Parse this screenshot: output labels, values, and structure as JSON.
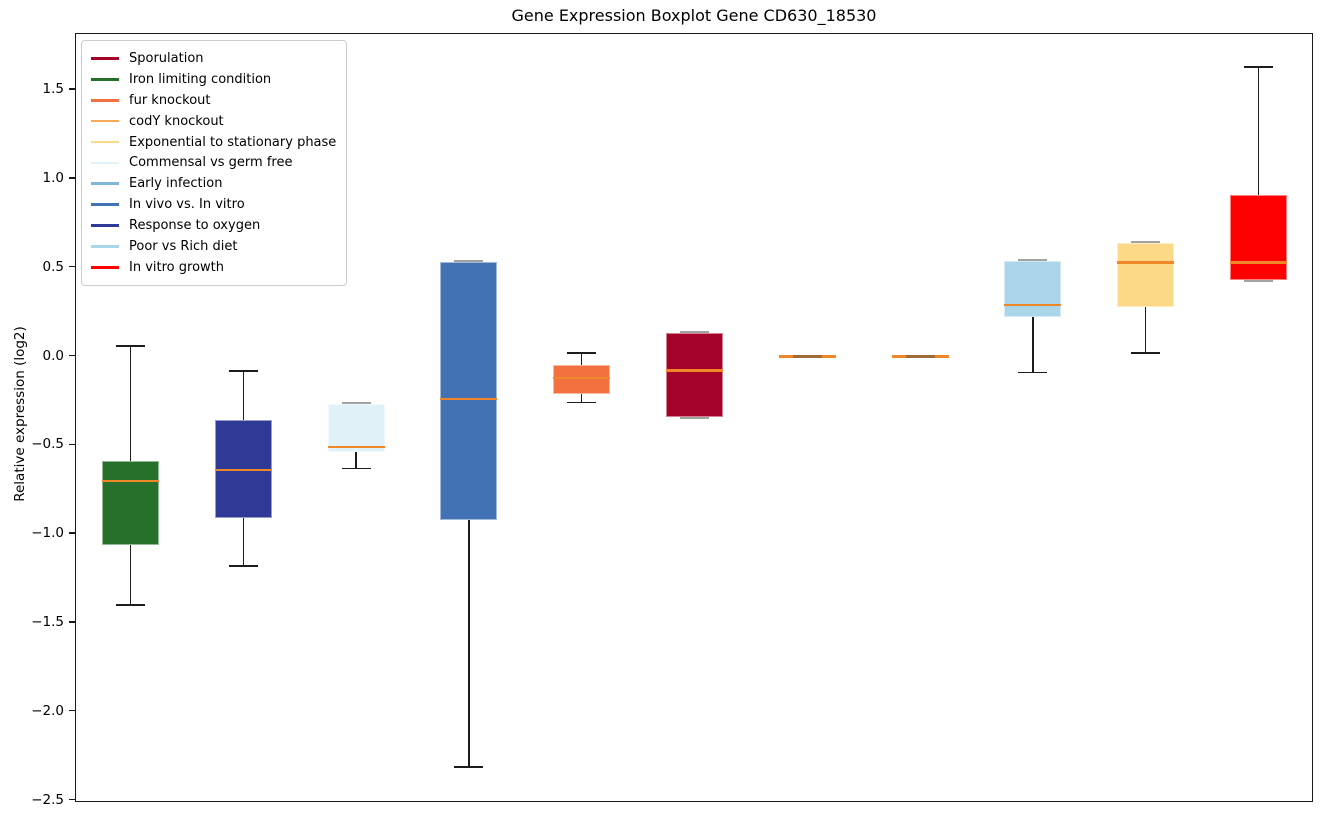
{
  "chart_data": {
    "type": "boxplot",
    "title": "Gene Expression Boxplot Gene CD630_18530",
    "ylabel": "Relative expression (log2)",
    "ylim": [
      -2.51,
      1.82
    ],
    "yticks": [
      1.5,
      1.0,
      0.5,
      0.0,
      -0.5,
      -1.0,
      -1.5,
      -2.0,
      -2.5
    ],
    "ytick_labels": [
      "1.5",
      "1.0",
      "0.5",
      "0.0",
      "−0.5",
      "−1.0",
      "−1.5",
      "−2.0",
      "−2.5"
    ],
    "grid": false,
    "legend_position": "upper left",
    "xtick_labels": [],
    "series": [
      {
        "name": "Iron limiting condition",
        "color": "#26702c",
        "whislo": -1.4,
        "q1": -1.06,
        "med": -0.7,
        "q3": -0.59,
        "whishi": 0.06
      },
      {
        "name": "Response to oxygen",
        "color": "#2f3a96",
        "whislo": -1.18,
        "q1": -0.91,
        "med": -0.64,
        "q3": -0.36,
        "whishi": -0.08
      },
      {
        "name": "Commensal vs germ free",
        "color": "#e0f2f8",
        "whislo": -0.63,
        "q1": -0.54,
        "med": -0.51,
        "q3": -0.27,
        "whishi": -0.27
      },
      {
        "name": "In vivo vs. In vitro",
        "color": "#4272b4",
        "whislo": -2.31,
        "q1": -0.92,
        "med": -0.24,
        "q3": 0.53,
        "whishi": 0.53
      },
      {
        "name": "fur knockout",
        "color": "#f3703f",
        "whislo": -0.26,
        "q1": -0.21,
        "med": -0.12,
        "q3": -0.05,
        "whishi": 0.02
      },
      {
        "name": "Sporulation",
        "color": "#a40228",
        "whislo": -0.34,
        "q1": -0.34,
        "med": -0.08,
        "q3": 0.13,
        "whishi": 0.13
      },
      {
        "name": "codY knockout",
        "color": "#f9a959",
        "whislo": 0.0,
        "q1": 0.0,
        "med": 0.0,
        "q3": 0.0,
        "whishi": 0.0
      },
      {
        "name": "Early infection",
        "color": "#82b5da",
        "whislo": 0.0,
        "q1": 0.0,
        "med": 0.0,
        "q3": 0.0,
        "whishi": 0.0
      },
      {
        "name": "Poor vs Rich diet",
        "color": "#abd6e9",
        "whislo": -0.09,
        "q1": 0.22,
        "med": 0.29,
        "q3": 0.54,
        "whishi": 0.54
      },
      {
        "name": "Exponential to stationary phase",
        "color": "#fcd987",
        "whislo": 0.02,
        "q1": 0.28,
        "med": 0.53,
        "q3": 0.64,
        "whishi": 0.64
      },
      {
        "name": "In vitro growth",
        "color": "#fe0000",
        "whislo": 0.43,
        "q1": 0.43,
        "med": 0.53,
        "q3": 0.91,
        "whishi": 1.63
      }
    ]
  },
  "legend": {
    "items": [
      {
        "label": "Sporulation",
        "color": "#a40228"
      },
      {
        "label": "Iron limiting condition",
        "color": "#26702c"
      },
      {
        "label": "fur knockout",
        "color": "#f3703f"
      },
      {
        "label": "codY knockout",
        "color": "#f9a959"
      },
      {
        "label": "Exponential to stationary phase",
        "color": "#fcd987"
      },
      {
        "label": "Commensal vs germ free",
        "color": "#e0f2f8"
      },
      {
        "label": "Early infection",
        "color": "#82b5da"
      },
      {
        "label": "In vivo vs. In vitro",
        "color": "#4272b4"
      },
      {
        "label": "Response to oxygen",
        "color": "#2f3a96"
      },
      {
        "label": "Poor vs Rich diet",
        "color": "#abd6e9"
      },
      {
        "label": "In vitro growth",
        "color": "#fe0000"
      }
    ]
  },
  "colors": {
    "median_line": "#ef8627",
    "whisker": "#1c1c1c",
    "flush_cap": "#a2a2a2",
    "spine": "#1a1a1a"
  }
}
